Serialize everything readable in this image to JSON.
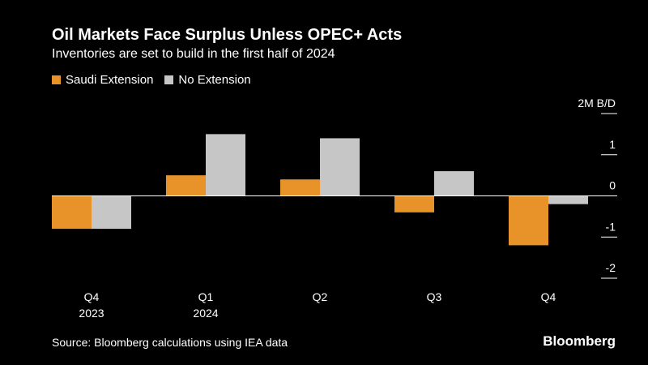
{
  "chart_data": {
    "type": "bar",
    "title": "Oil Markets Face Surplus Unless OPEC+ Acts",
    "subtitle": "Inventories are set to build in the first half of 2024",
    "categories": [
      "Q4",
      "Q1",
      "Q2",
      "Q3",
      "Q4"
    ],
    "category_years": [
      "2023",
      "2024",
      "",
      "",
      ""
    ],
    "series": [
      {
        "name": "Saudi Extension",
        "color": "#e8932a",
        "values": [
          -0.8,
          0.5,
          0.4,
          -0.4,
          -1.2
        ]
      },
      {
        "name": "No Extension",
        "color": "#c6c6c6",
        "values": [
          -0.8,
          1.5,
          1.4,
          0.6,
          -0.2
        ]
      }
    ],
    "y_ticks": [
      {
        "value": 2,
        "label": "2M B/D"
      },
      {
        "value": 1,
        "label": "1"
      },
      {
        "value": 0,
        "label": "0"
      },
      {
        "value": -1,
        "label": "-1"
      },
      {
        "value": -2,
        "label": "-2"
      }
    ],
    "ylim": [
      -2,
      2
    ],
    "xlabel": "",
    "ylabel": "",
    "legend_position": "top-left",
    "grid": false
  },
  "footer": {
    "source": "Source: Bloomberg calculations using IEA data",
    "brand": "Bloomberg"
  }
}
